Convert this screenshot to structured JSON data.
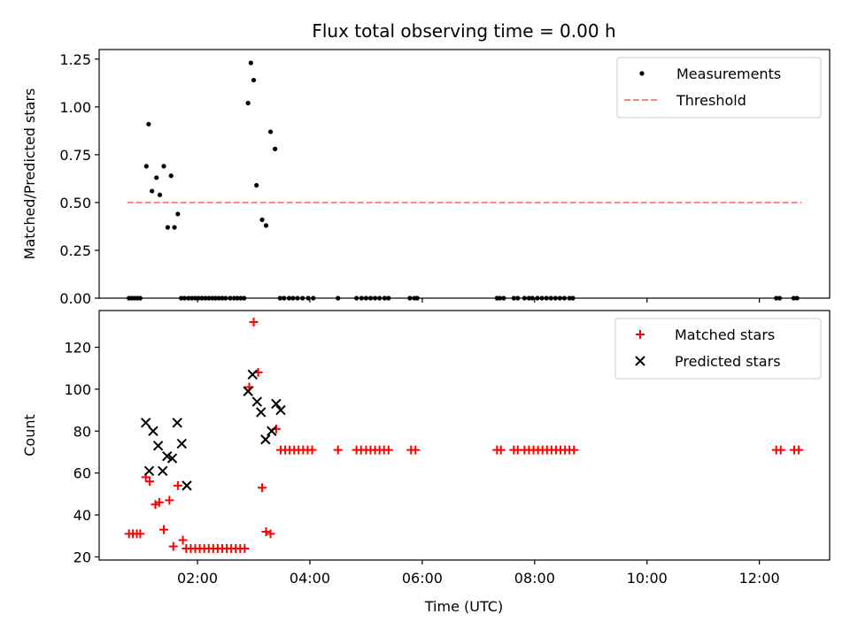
{
  "figure": {
    "title": "Flux total observing time = 0.00 h",
    "xlabel": "Time (UTC)"
  },
  "chart_data": [
    {
      "type": "scatter",
      "ylabel": "Matched/Predicted stars",
      "xlim": [
        0.25,
        13.25
      ],
      "ylim": [
        0,
        1.3
      ],
      "x_tick_labels": [
        "02:00",
        "04:00",
        "06:00",
        "08:00",
        "10:00",
        "12:00"
      ],
      "x_tick_values": [
        2,
        4,
        6,
        8,
        10,
        12
      ],
      "y_tick_labels": [
        "0.00",
        "0.25",
        "0.50",
        "0.75",
        "1.00",
        "1.25"
      ],
      "y_tick_values": [
        0,
        0.25,
        0.5,
        0.75,
        1.0,
        1.25
      ],
      "legend_position": "top-right",
      "series": [
        {
          "name": "Measurements",
          "marker": "dot",
          "color": "#000000",
          "x": [
            0.78,
            0.83,
            0.88,
            0.93,
            0.98,
            1.09,
            1.13,
            1.19,
            1.27,
            1.33,
            1.4,
            1.47,
            1.53,
            1.59,
            1.65,
            1.71,
            1.77,
            1.84,
            1.9,
            1.96,
            2.02,
            2.08,
            2.14,
            2.2,
            2.26,
            2.32,
            2.38,
            2.44,
            2.5,
            2.58,
            2.65,
            2.71,
            2.77,
            2.83,
            2.9,
            2.95,
            3.0,
            3.05,
            3.15,
            3.22,
            3.3,
            3.38,
            3.47,
            3.54,
            3.63,
            3.7,
            3.78,
            3.87,
            3.97,
            4.06,
            4.5,
            4.83,
            4.92,
            5.0,
            5.08,
            5.16,
            5.24,
            5.33,
            5.4,
            5.78,
            5.86,
            5.91,
            7.33,
            7.38,
            7.45,
            7.63,
            7.7,
            7.82,
            7.9,
            7.96,
            8.05,
            8.13,
            8.21,
            8.29,
            8.37,
            8.45,
            8.53,
            8.62,
            8.68,
            12.3,
            12.36,
            12.61,
            12.67
          ],
          "y": [
            0,
            0,
            0,
            0,
            0,
            0.69,
            0.91,
            0.56,
            0.63,
            0.54,
            0.69,
            0.37,
            0.64,
            0.37,
            0.44,
            0,
            0,
            0,
            0,
            0,
            0,
            0,
            0,
            0,
            0,
            0,
            0,
            0,
            0,
            0,
            0,
            0,
            0,
            0,
            1.02,
            1.23,
            1.14,
            0.59,
            0.41,
            0.38,
            0.87,
            0.78,
            0,
            0,
            0,
            0,
            0,
            0,
            0,
            0,
            0,
            0,
            0,
            0,
            0,
            0,
            0,
            0,
            0,
            0,
            0,
            0,
            0,
            0,
            0,
            0,
            0,
            0,
            0,
            0,
            0,
            0,
            0,
            0,
            0,
            0,
            0,
            0,
            0,
            0,
            0,
            0,
            0
          ]
        },
        {
          "name": "Threshold",
          "marker": "dashed-line",
          "color": "#ff7f7f",
          "x": [
            0.75,
            12.75
          ],
          "y": [
            0.5,
            0.5
          ]
        }
      ]
    },
    {
      "type": "scatter",
      "ylabel": "Count",
      "xlim": [
        0.25,
        13.25
      ],
      "ylim": [
        18.5,
        137.5
      ],
      "x_tick_labels": [
        "02:00",
        "04:00",
        "06:00",
        "08:00",
        "10:00",
        "12:00"
      ],
      "x_tick_values": [
        2,
        4,
        6,
        8,
        10,
        12
      ],
      "y_tick_labels": [
        "20",
        "40",
        "60",
        "80",
        "100",
        "120"
      ],
      "y_tick_values": [
        20,
        40,
        60,
        80,
        100,
        120
      ],
      "legend_position": "top-right",
      "series": [
        {
          "name": "Matched stars",
          "marker": "plus",
          "color": "#ff0000",
          "x": [
            0.78,
            0.85,
            0.92,
            0.98,
            1.08,
            1.15,
            1.25,
            1.32,
            1.4,
            1.5,
            1.57,
            1.65,
            1.74,
            1.8,
            1.88,
            1.96,
            2.04,
            2.12,
            2.2,
            2.28,
            2.36,
            2.44,
            2.52,
            2.6,
            2.68,
            2.76,
            2.84,
            2.92,
            3.0,
            3.08,
            3.15,
            3.22,
            3.3,
            3.4,
            3.48,
            3.56,
            3.64,
            3.72,
            3.8,
            3.88,
            3.96,
            4.04,
            4.5,
            4.83,
            4.91,
            5.0,
            5.08,
            5.16,
            5.24,
            5.32,
            5.4,
            5.8,
            5.88,
            7.33,
            7.4,
            7.63,
            7.7,
            7.82,
            7.9,
            7.98,
            8.06,
            8.14,
            8.22,
            8.3,
            8.38,
            8.46,
            8.54,
            8.62,
            8.7,
            12.3,
            12.38,
            12.62,
            12.7
          ],
          "y": [
            31,
            31,
            31,
            31,
            58,
            56,
            45,
            46,
            33,
            47,
            25,
            54,
            28,
            24,
            24,
            24,
            24,
            24,
            24,
            24,
            24,
            24,
            24,
            24,
            24,
            24,
            24,
            101,
            132,
            108,
            53,
            32,
            31,
            81,
            71,
            71,
            71,
            71,
            71,
            71,
            71,
            71,
            71,
            71,
            71,
            71,
            71,
            71,
            71,
            71,
            71,
            71,
            71,
            71,
            71,
            71,
            71,
            71,
            71,
            71,
            71,
            71,
            71,
            71,
            71,
            71,
            71,
            71,
            71,
            71,
            71,
            71,
            71
          ]
        },
        {
          "name": "Predicted stars",
          "marker": "x",
          "color": "#000000",
          "x": [
            1.08,
            1.14,
            1.21,
            1.3,
            1.38,
            1.46,
            1.55,
            1.64,
            1.72,
            1.81,
            2.9,
            2.98,
            3.06,
            3.13,
            3.21,
            3.32,
            3.4,
            3.48
          ],
          "y": [
            84,
            61,
            80,
            73,
            61,
            68,
            67,
            84,
            74,
            54,
            99,
            107,
            94,
            89,
            76,
            80,
            93,
            90
          ]
        }
      ]
    }
  ]
}
